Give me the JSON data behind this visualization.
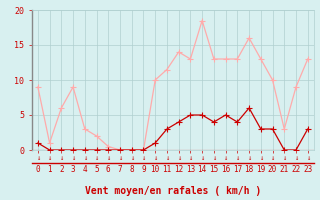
{
  "hours": [
    0,
    1,
    2,
    3,
    4,
    5,
    6,
    7,
    8,
    9,
    10,
    11,
    12,
    13,
    14,
    15,
    16,
    17,
    18,
    19,
    20,
    21,
    22,
    23
  ],
  "avg_wind": [
    1,
    0,
    0,
    0,
    0,
    0,
    0,
    0,
    0,
    0,
    1,
    3,
    4,
    5,
    5,
    4,
    5,
    4,
    6,
    3,
    3,
    0,
    0,
    3
  ],
  "gust_wind": [
    9,
    1,
    6,
    9,
    3,
    2,
    0.5,
    0,
    0,
    0,
    10,
    11.5,
    14,
    13,
    18.5,
    13,
    13,
    13,
    16,
    13,
    10,
    3,
    9,
    13
  ],
  "avg_color": "#cc0000",
  "gust_color": "#ffaaaa",
  "bg_color": "#d8f0f0",
  "grid_color": "#b0d0d0",
  "axis_color": "#cc0000",
  "ylabel_ticks": [
    0,
    5,
    10,
    15,
    20
  ],
  "ylim": [
    0,
    20
  ],
  "xlim": [
    -0.5,
    23.5
  ],
  "xlabel": "Vent moyen/en rafales ( km/h )",
  "xlabel_fontsize": 7,
  "tick_fontsize": 6,
  "marker_size": 2.5,
  "line_width": 0.9
}
